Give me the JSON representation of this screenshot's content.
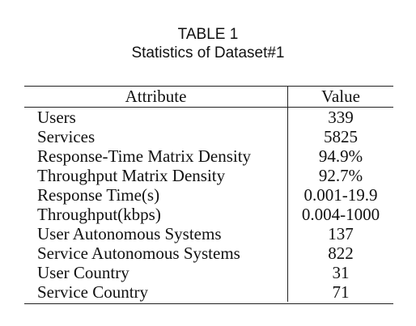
{
  "caption": {
    "number": "TABLE 1",
    "title": "Statistics of Dataset#1"
  },
  "table": {
    "headers": [
      "Attribute",
      "Value"
    ],
    "rows": [
      [
        "Users",
        "339"
      ],
      [
        "Services",
        "5825"
      ],
      [
        "Response-Time Matrix Density",
        "94.9%"
      ],
      [
        "Throughput Matrix Density",
        "92.7%"
      ],
      [
        "Response Time(s)",
        "0.001-19.9"
      ],
      [
        "Throughput(kbps)",
        "0.004-1000"
      ],
      [
        "User Autonomous Systems",
        "137"
      ],
      [
        "Service Autonomous Systems",
        "822"
      ],
      [
        "User Country",
        "31"
      ],
      [
        "Service Country",
        "71"
      ]
    ]
  }
}
